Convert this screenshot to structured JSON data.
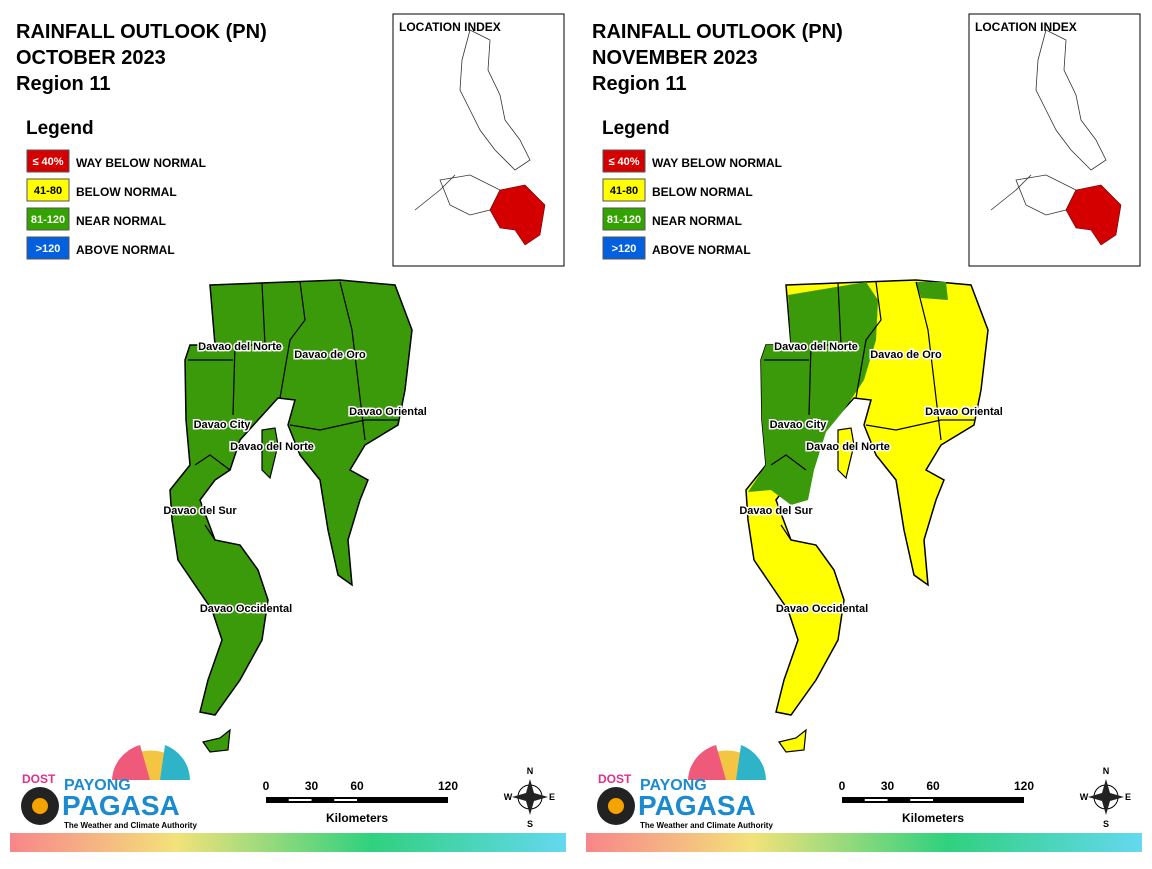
{
  "panels": [
    {
      "title": [
        "RAINFALL OUTLOOK (PN)",
        "OCTOBER 2023",
        "Region 11"
      ],
      "location_index": "LOCATION INDEX",
      "legend": {
        "title": "Legend",
        "items": [
          {
            "range": "≤ 40%",
            "label": "WAY BELOW NORMAL",
            "color": "#d40000"
          },
          {
            "range": "41-80",
            "label": "BELOW NORMAL",
            "color": "#ffff00"
          },
          {
            "range": "81-120",
            "label": "NEAR NORMAL",
            "color": "#33a300"
          },
          {
            "range": ">120",
            "label": "ABOVE NORMAL",
            "color": "#0060e0"
          }
        ]
      },
      "provinces": [
        "Davao del Norte",
        "Davao de Oro",
        "Davao Oriental",
        "Davao City",
        "Davao del Norte",
        "Davao del Sur",
        "Davao Occidental"
      ],
      "scale": {
        "ticks": [
          0,
          30,
          60,
          120
        ],
        "unit": "Kilometers"
      },
      "compass": [
        "N",
        "E",
        "S",
        "W"
      ],
      "logo": {
        "agency": "DOST",
        "line1": "PAYONG",
        "line2": "PAGASA",
        "tagline": "The Weather and Climate Authority"
      }
    },
    {
      "title": [
        "RAINFALL OUTLOOK (PN)",
        "NOVEMBER 2023",
        "Region 11"
      ],
      "location_index": "LOCATION INDEX",
      "legend": {
        "title": "Legend",
        "items": [
          {
            "range": "≤ 40%",
            "label": "WAY BELOW NORMAL",
            "color": "#d40000"
          },
          {
            "range": "41-80",
            "label": "BELOW NORMAL",
            "color": "#ffff00"
          },
          {
            "range": "81-120",
            "label": "NEAR NORMAL",
            "color": "#33a300"
          },
          {
            "range": ">120",
            "label": "ABOVE NORMAL",
            "color": "#0060e0"
          }
        ]
      },
      "provinces": [
        "Davao del Norte",
        "Davao de Oro",
        "Davao Oriental",
        "Davao City",
        "Davao del Norte",
        "Davao del Sur",
        "Davao Occidental"
      ],
      "scale": {
        "ticks": [
          0,
          30,
          60,
          120
        ],
        "unit": "Kilometers"
      },
      "compass": [
        "N",
        "E",
        "S",
        "W"
      ],
      "logo": {
        "agency": "DOST",
        "line1": "PAYONG",
        "line2": "PAGASA",
        "tagline": "The Weather and Climate Authority"
      }
    }
  ]
}
